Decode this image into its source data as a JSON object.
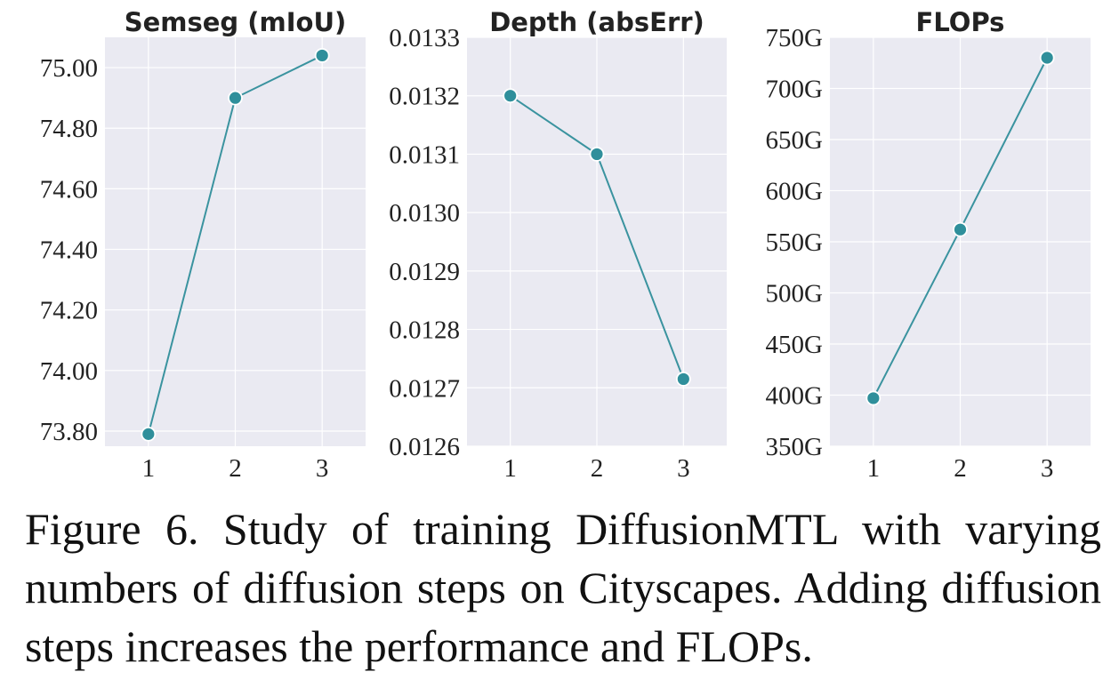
{
  "chart_data": [
    {
      "type": "line",
      "title": "Semseg (mIoU)",
      "x": [
        1,
        2,
        3
      ],
      "x_tick_labels": [
        "1",
        "2",
        "3"
      ],
      "y": [
        73.79,
        74.9,
        75.04
      ],
      "ylim": [
        73.75,
        75.1
      ],
      "y_ticks": [
        73.8,
        74.0,
        74.2,
        74.4,
        74.6,
        74.8,
        75.0
      ],
      "y_tick_labels": [
        "73.80",
        "74.00",
        "74.20",
        "74.40",
        "74.60",
        "74.80",
        "75.00"
      ],
      "xlabel": "",
      "ylabel": "",
      "grid": true
    },
    {
      "type": "line",
      "title": "Depth (absErr)",
      "x": [
        1,
        2,
        3
      ],
      "x_tick_labels": [
        "1",
        "2",
        "3"
      ],
      "y": [
        0.0132,
        0.0131,
        0.012715
      ],
      "ylim": [
        0.0126,
        0.0133
      ],
      "y_ticks": [
        0.0126,
        0.0127,
        0.0128,
        0.0129,
        0.013,
        0.0131,
        0.0132,
        0.0133
      ],
      "y_tick_labels": [
        "0.0126",
        "0.0127",
        "0.0128",
        "0.0129",
        "0.0130",
        "0.0131",
        "0.0132",
        "0.0133"
      ],
      "xlabel": "",
      "ylabel": "",
      "grid": true
    },
    {
      "type": "line",
      "title": "FLOPs",
      "x": [
        1,
        2,
        3
      ],
      "x_tick_labels": [
        "1",
        "2",
        "3"
      ],
      "y": [
        397,
        562,
        730
      ],
      "ylim": [
        350,
        750
      ],
      "y_ticks": [
        350,
        400,
        450,
        500,
        550,
        600,
        650,
        700,
        750
      ],
      "y_tick_labels": [
        "350G",
        "400G",
        "450G",
        "500G",
        "550G",
        "600G",
        "650G",
        "700G",
        "750G"
      ],
      "xlabel": "",
      "ylabel": "",
      "grid": true
    }
  ],
  "colors": {
    "line": "#3a939f",
    "marker": "#2f8f9b",
    "marker_edge": "#ffffff",
    "plot_background": "#eaeaf2",
    "grid": "#ffffff"
  },
  "caption": "Figure 6. Study of training DiffusionMTL with varying numbers of diffusion steps on Cityscapes. Adding diffusion steps increases the performance and FLOPs."
}
